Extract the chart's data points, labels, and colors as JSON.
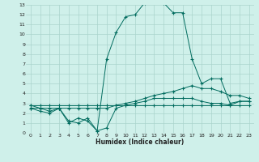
{
  "xlabel": "Humidex (Indice chaleur)",
  "bg_color": "#cff0ea",
  "grid_color": "#aad4cc",
  "line_color": "#006b5e",
  "xlim": [
    -0.5,
    23.5
  ],
  "ylim": [
    0,
    13
  ],
  "xticks": [
    0,
    1,
    2,
    3,
    4,
    5,
    6,
    7,
    8,
    9,
    10,
    11,
    12,
    13,
    14,
    15,
    16,
    17,
    18,
    19,
    20,
    21,
    22,
    23
  ],
  "yticks": [
    0,
    1,
    2,
    3,
    4,
    5,
    6,
    7,
    8,
    9,
    10,
    11,
    12,
    13
  ],
  "series1_x": [
    0,
    1,
    2,
    3,
    4,
    5,
    6,
    7,
    8,
    9,
    10,
    11,
    12,
    13,
    14,
    15,
    16,
    17,
    18,
    19,
    20,
    21,
    22,
    23
  ],
  "series1_y": [
    2.5,
    2.2,
    2.0,
    2.5,
    1.2,
    1.0,
    1.5,
    0.2,
    7.5,
    10.2,
    11.8,
    12.0,
    13.2,
    13.5,
    13.2,
    12.2,
    12.2,
    7.5,
    5.0,
    5.5,
    5.5,
    3.0,
    3.2,
    3.2
  ],
  "series2_x": [
    0,
    1,
    2,
    3,
    4,
    5,
    6,
    7,
    8,
    9,
    10,
    11,
    12,
    13,
    14,
    15,
    16,
    17,
    18,
    19,
    20,
    21,
    22,
    23
  ],
  "series2_y": [
    2.5,
    2.5,
    2.5,
    2.5,
    2.5,
    2.5,
    2.5,
    2.5,
    2.5,
    2.8,
    3.0,
    3.2,
    3.5,
    3.8,
    4.0,
    4.2,
    4.5,
    4.8,
    4.5,
    4.5,
    4.2,
    3.8,
    3.8,
    3.5
  ],
  "series3_x": [
    0,
    1,
    2,
    3,
    4,
    5,
    6,
    7,
    8,
    9,
    10,
    11,
    12,
    13,
    14,
    15,
    16,
    17,
    18,
    19,
    20,
    21,
    22,
    23
  ],
  "series3_y": [
    2.8,
    2.5,
    2.2,
    2.5,
    1.0,
    1.5,
    1.2,
    0.2,
    0.5,
    2.5,
    2.8,
    3.0,
    3.2,
    3.5,
    3.5,
    3.5,
    3.5,
    3.5,
    3.2,
    3.0,
    3.0,
    2.8,
    3.2,
    3.2
  ],
  "series4_x": [
    0,
    1,
    2,
    3,
    4,
    5,
    6,
    7,
    8,
    9,
    10,
    11,
    12,
    13,
    14,
    15,
    16,
    17,
    18,
    19,
    20,
    21,
    22,
    23
  ],
  "series4_y": [
    2.8,
    2.8,
    2.8,
    2.8,
    2.8,
    2.8,
    2.8,
    2.8,
    2.8,
    2.8,
    2.8,
    2.8,
    2.8,
    2.8,
    2.8,
    2.8,
    2.8,
    2.8,
    2.8,
    2.8,
    2.8,
    2.8,
    2.8,
    2.8
  ]
}
